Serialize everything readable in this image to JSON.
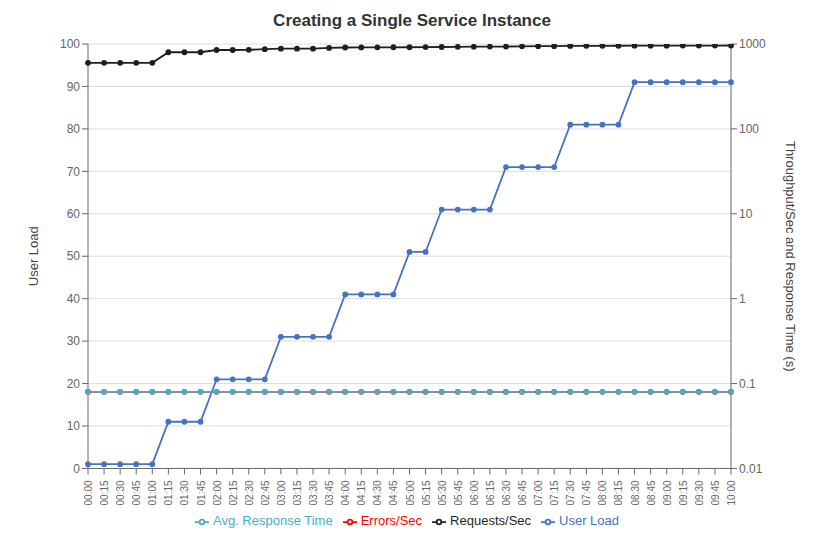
{
  "chart_data": {
    "type": "line",
    "title": "Creating a Single Service Instance",
    "ylabel": "User Load",
    "y2label": "Throughput/Sec and Response Time (s)",
    "categories": [
      "00:00",
      "00:15",
      "00:30",
      "00:45",
      "01:00",
      "01:15",
      "01:30",
      "01:45",
      "02:00",
      "02:15",
      "02:30",
      "02:45",
      "03:00",
      "03:15",
      "03:30",
      "03:45",
      "04:00",
      "04:15",
      "04:30",
      "04:45",
      "05:00",
      "05:15",
      "05:30",
      "05:45",
      "06:00",
      "06:15",
      "06:30",
      "06:45",
      "07:00",
      "07:15",
      "07:30",
      "07:45",
      "08:00",
      "08:15",
      "08:30",
      "08:45",
      "09:00",
      "09:15",
      "09:30",
      "09:45",
      "10:00"
    ],
    "series": [
      {
        "name": "User Load",
        "color": "#4472C4",
        "values": [
          1,
          1,
          1,
          1,
          1,
          11,
          11,
          11,
          21,
          21,
          21,
          21,
          31,
          31,
          31,
          31,
          41,
          41,
          41,
          41,
          51,
          51,
          61,
          61,
          61,
          61,
          71,
          71,
          71,
          71,
          81,
          81,
          81,
          81,
          91,
          91,
          91,
          91,
          91,
          91,
          91
        ]
      },
      {
        "name": "Requests/Sec",
        "color": "#1F1F1F",
        "axis": "y2",
        "values": [
          600,
          600,
          600,
          600,
          600,
          800,
          800,
          800,
          850,
          850,
          855,
          870,
          880,
          880,
          882,
          900,
          910,
          912,
          913,
          915,
          916,
          920,
          922,
          925,
          930,
          932,
          933,
          940,
          942,
          943,
          950,
          952,
          953,
          954,
          955,
          956,
          956,
          957,
          958,
          958,
          960
        ]
      },
      {
        "name": "Errors/Sec",
        "color": "#FF0000",
        "axis": "y2",
        "values": [
          0.08,
          0.08,
          0.08,
          0.08,
          0.08,
          0.08,
          0.08,
          0.08,
          0.08,
          0.08,
          0.08,
          0.08,
          0.08,
          0.08,
          0.08,
          0.08,
          0.08,
          0.08,
          0.08,
          0.08,
          0.08,
          0.08,
          0.08,
          0.08,
          0.08,
          0.08,
          0.08,
          0.08,
          0.08,
          0.08,
          0.08,
          0.08,
          0.08,
          0.08,
          0.08,
          0.08,
          0.08,
          0.08,
          0.08,
          0.08,
          0.08
        ]
      },
      {
        "name": "Avg. Response Time",
        "color": "#4BACC6",
        "axis": "y2",
        "values": [
          0.08,
          0.08,
          0.08,
          0.08,
          0.08,
          0.08,
          0.08,
          0.08,
          0.08,
          0.08,
          0.08,
          0.08,
          0.08,
          0.08,
          0.08,
          0.08,
          0.08,
          0.08,
          0.08,
          0.08,
          0.08,
          0.08,
          0.08,
          0.08,
          0.08,
          0.08,
          0.08,
          0.08,
          0.08,
          0.08,
          0.08,
          0.08,
          0.08,
          0.08,
          0.08,
          0.08,
          0.08,
          0.08,
          0.08,
          0.08,
          0.08
        ]
      }
    ],
    "ylim": [
      0,
      100
    ],
    "yticks": [
      0,
      10,
      20,
      30,
      40,
      50,
      60,
      70,
      80,
      90,
      100
    ],
    "y2lim": [
      0.01,
      1000
    ],
    "y2ticks": [
      0.01,
      0.1,
      1,
      10,
      100,
      1000
    ],
    "log": "y2",
    "grid": true,
    "legend": "bottom",
    "marker": "circle"
  }
}
